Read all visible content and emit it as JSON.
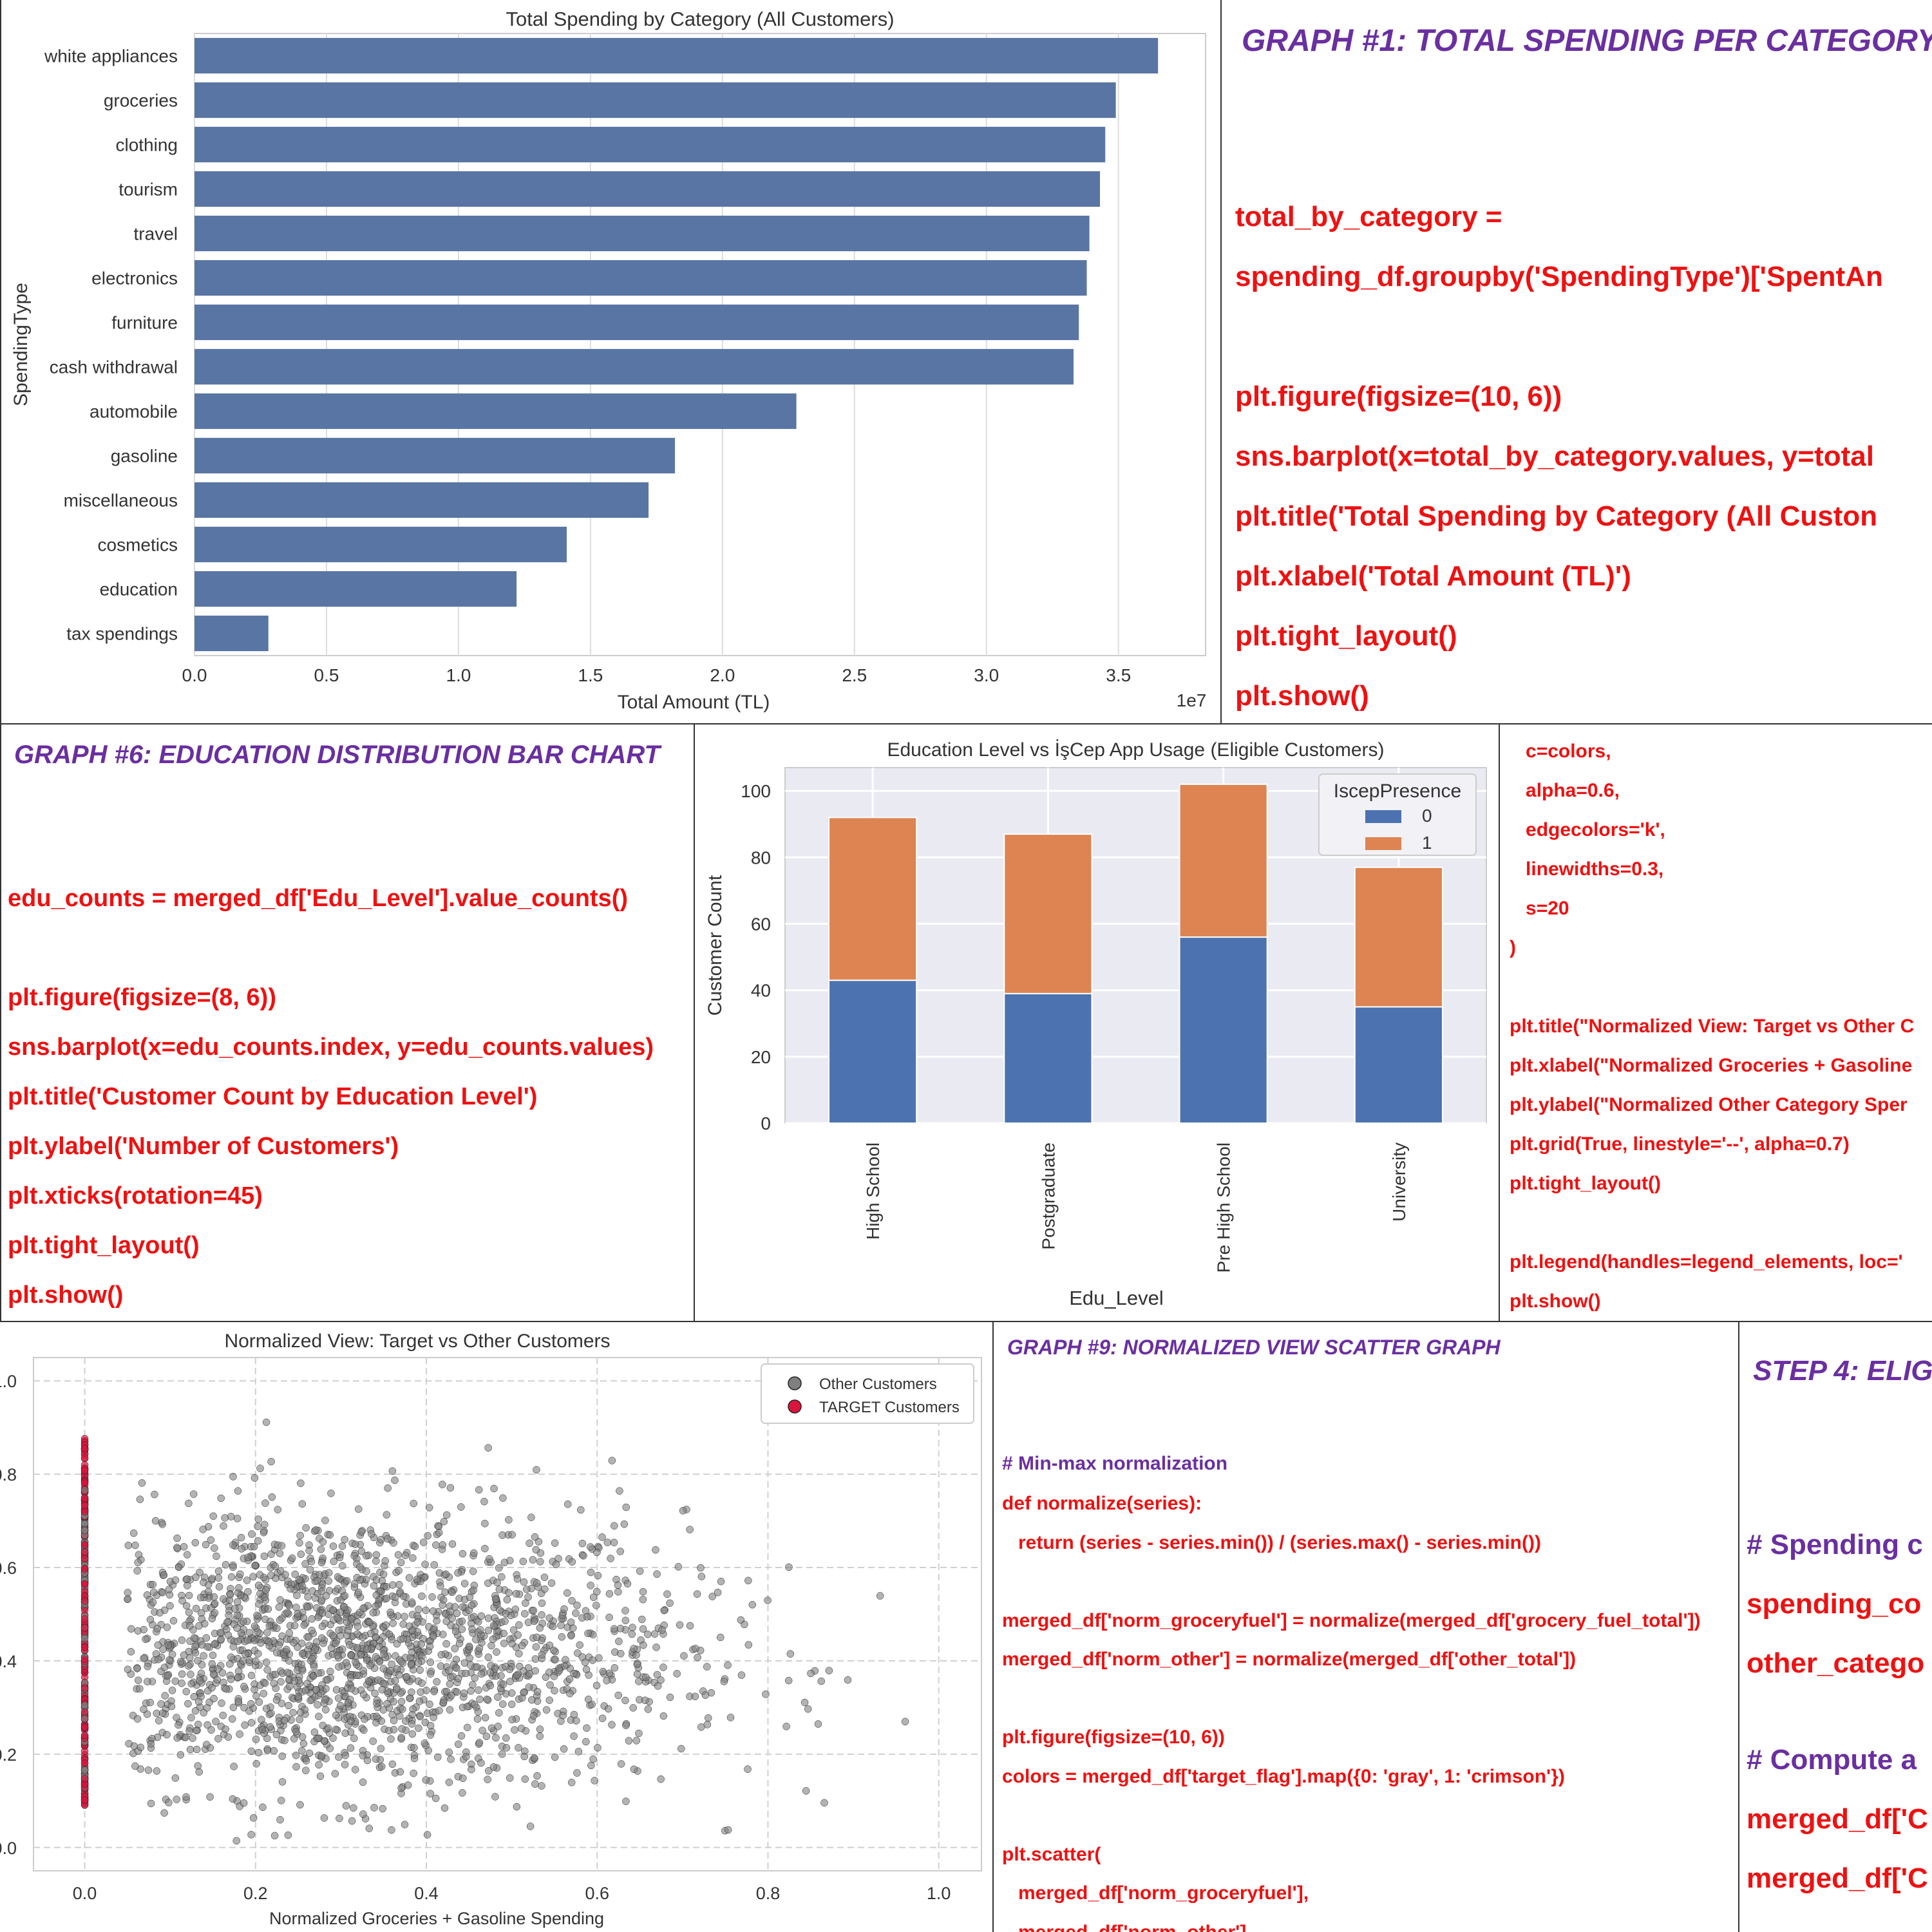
{
  "chart_data": [
    {
      "type": "bar",
      "orientation": "horizontal",
      "title": "Total Spending by Category (All Customers)",
      "xlabel": "Total Amount (TL)",
      "ylabel": "SpendingType",
      "x_offset_label": "1e7",
      "xlim": [
        0,
        3.83
      ],
      "xticks": [
        "0.0",
        "0.5",
        "1.0",
        "1.5",
        "2.0",
        "2.5",
        "3.0",
        "3.5"
      ],
      "categories": [
        "white appliances",
        "groceries",
        "clothing",
        "tourism",
        "travel",
        "electronics",
        "furniture",
        "cash withdrawal",
        "automobile",
        "gasoline",
        "miscellaneous",
        "cosmetics",
        "education",
        "tax spendings"
      ],
      "values": [
        3.65,
        3.49,
        3.45,
        3.43,
        3.39,
        3.38,
        3.35,
        3.33,
        2.28,
        1.82,
        1.72,
        1.41,
        1.22,
        0.28
      ],
      "color": "#5975a4",
      "grid": true
    },
    {
      "type": "bar",
      "stacked": true,
      "title": "Education Level vs İşCep App Usage (Eligible Customers)",
      "xlabel": "Edu_Level",
      "ylabel": "Customer Count",
      "ylim": [
        0,
        107
      ],
      "yticks": [
        0,
        20,
        40,
        60,
        80,
        100
      ],
      "categories": [
        "High School",
        "Postgraduate",
        "Pre High School",
        "University"
      ],
      "legend_title": "IscepPresence",
      "legend_position": "top-right",
      "series": [
        {
          "name": "0",
          "values": [
            43,
            39,
            56,
            35
          ],
          "color": "#4c72b0"
        },
        {
          "name": "1",
          "values": [
            49,
            48,
            46,
            42
          ],
          "color": "#dd8452"
        }
      ],
      "grid": true
    },
    {
      "type": "scatter",
      "title": "Normalized View: Target vs Other Customers",
      "xlabel": "Normalized Groceries + Gasoline Spending",
      "xlim": [
        -0.06,
        1.05
      ],
      "ylim": [
        -0.05,
        1.05
      ],
      "xticks": [
        "0.0",
        "0.2",
        "0.4",
        "0.6",
        "0.8",
        "1.0"
      ],
      "yticks": [
        "0.0",
        "0.2",
        "0.4",
        "0.6",
        "0.8",
        "1.0"
      ],
      "legend_position": "top-right",
      "series": [
        {
          "name": "Other Customers",
          "color": "#808080",
          "distribution": "x around 0.30 (spread 0.20), y around 0.42 (spread 0.15)",
          "approx_count": 2200
        },
        {
          "name": "TARGET Customers",
          "color": "#dc143c",
          "distribution": "x = 0.0, y between 0.09 and 0.88",
          "approx_count": 300
        }
      ],
      "grid": true
    }
  ],
  "panel1_code": {
    "heading": "GRAPH #1: TOTAL SPENDING PER CATEGORY",
    "lines": [
      "total_by_category =",
      "spending_df.groupby('SpendingType')['SpentAn",
      "",
      "plt.figure(figsize=(10, 6))",
      "sns.barplot(x=total_by_category.values, y=total",
      "plt.title('Total Spending by Category (All Custon",
      "plt.xlabel('Total Amount (TL)')",
      "plt.tight_layout()",
      "plt.show()"
    ]
  },
  "panel2_code": {
    "heading": "GRAPH #6: EDUCATION DISTRIBUTION BAR CHART",
    "lines": [
      "edu_counts = merged_df['Edu_Level'].value_counts()",
      "",
      "plt.figure(figsize=(8, 6))",
      "sns.barplot(x=edu_counts.index, y=edu_counts.values)",
      "plt.title('Customer Count by Education Level')",
      "plt.ylabel('Number of Customers')",
      "plt.xticks(rotation=45)",
      "plt.tight_layout()",
      "plt.show()"
    ]
  },
  "panel3_code": {
    "lines": [
      "   c=colors,",
      "   alpha=0.6,",
      "   edgecolors='k',",
      "   linewidths=0.3,",
      "   s=20",
      ")",
      "",
      "plt.title(\"Normalized View: Target vs Other C",
      "plt.xlabel(\"Normalized Groceries + Gasoline",
      "plt.ylabel(\"Normalized Other Category Sper",
      "plt.grid(True, linestyle='--', alpha=0.7)",
      "plt.tight_layout()",
      "",
      "plt.legend(handles=legend_elements, loc='",
      "plt.show()"
    ]
  },
  "panel4_code": {
    "heading": "GRAPH #9: NORMALIZED VIEW SCATTER GRAPH",
    "comment": "# Min-max normalization",
    "lines": [
      "def normalize(series):",
      "   return (series - series.min()) / (series.max() - series.min())",
      "",
      "merged_df['norm_groceryfuel'] = normalize(merged_df['grocery_fuel_total'])",
      "merged_df['norm_other'] = normalize(merged_df['other_total'])",
      "",
      "plt.figure(figsize=(10, 6))",
      "colors = merged_df['target_flag'].map({0: 'gray', 1: 'crimson'})",
      "",
      "plt.scatter(",
      "   merged_df['norm_groceryfuel'],",
      "   merged_df['norm_other'],"
    ]
  },
  "panel5_code": {
    "heading": "STEP 4: ELIG",
    "comment1": "# Spending c",
    "line1": "spending_co",
    "line2": "other_catego",
    "comment2": "# Compute a",
    "line3": "merged_df['C",
    "line4": "merged_df['C"
  }
}
